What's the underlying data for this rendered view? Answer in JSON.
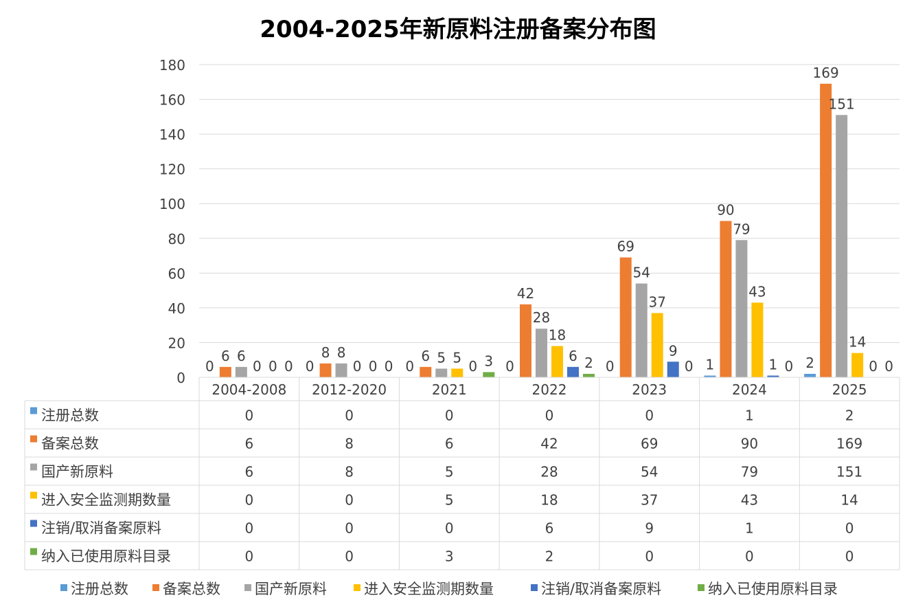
{
  "chart_data": {
    "type": "bar",
    "title": "2004-2025年新原料注册备案分布图",
    "categories": [
      "2004-2008",
      "2012-2020",
      "2021",
      "2022",
      "2023",
      "2024",
      "2025"
    ],
    "ylim": [
      0,
      180
    ],
    "yticks": [
      0,
      20,
      40,
      60,
      80,
      100,
      120,
      140,
      160,
      180
    ],
    "grid": true,
    "legend_position": "bottom",
    "data_table": true,
    "series": [
      {
        "name": "注册总数",
        "color": "#5b9bd5",
        "values": [
          0,
          0,
          0,
          0,
          0,
          1,
          2
        ],
        "labels": [
          "0",
          "0",
          "0",
          "0",
          "0",
          "1",
          "2"
        ]
      },
      {
        "name": "备案总数",
        "color": "#ed7d31",
        "values": [
          6,
          8,
          6,
          42,
          69,
          90,
          169
        ],
        "labels": [
          "6",
          "8",
          "6",
          "42",
          "69",
          "90",
          "169"
        ]
      },
      {
        "name": "国产新原料",
        "color": "#a5a5a5",
        "values": [
          6,
          8,
          5,
          28,
          54,
          79,
          151
        ],
        "labels": [
          "6",
          "8",
          "5",
          "28",
          "54",
          "79",
          "151"
        ]
      },
      {
        "name": "进入安全监测期数量",
        "color": "#ffc000",
        "values": [
          0,
          0,
          5,
          18,
          37,
          43,
          14
        ],
        "labels": [
          "0",
          "0",
          "5",
          "18",
          "37",
          "43",
          "14"
        ]
      },
      {
        "name": "注销/取消备案原料",
        "color": "#4472c4",
        "values": [
          0,
          0,
          0,
          6,
          9,
          1,
          0
        ],
        "labels": [
          "0",
          "0",
          "0",
          "6",
          "9",
          "1",
          "0"
        ]
      },
      {
        "name": "纳入已使用原料目录",
        "color": "#70ad47",
        "values": [
          0,
          0,
          3,
          2,
          0,
          0,
          0
        ],
        "labels": [
          "0",
          "0",
          "3",
          "2",
          "0",
          "0",
          "0"
        ]
      }
    ]
  }
}
